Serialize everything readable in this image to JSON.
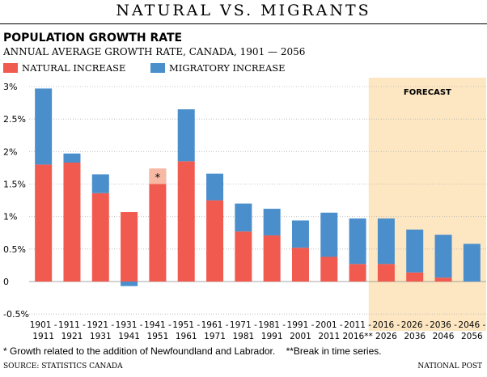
{
  "header": {
    "title": "NATURAL VS. MIGRANTS",
    "subtitle": "POPULATION GROWTH RATE",
    "description": "ANNUAL AVERAGE GROWTH RATE, CANADA, 1901 — 2056"
  },
  "legend": {
    "natural_label": "NATURAL INCREASE",
    "migratory_label": "MIGRATORY INCREASE"
  },
  "colors": {
    "natural": "#f15a4f",
    "migratory": "#4a8fcc",
    "newfoundland": "#f7b9a4",
    "forecast_bg": "#fde7c2"
  },
  "footer": {
    "footnote": "* Growth related to the addition of Newfoundland and Labrador.    **Break in time series.",
    "source": "SOURCE: STATISTICS CANADA",
    "credit": "NATIONAL POST"
  },
  "chart_data": {
    "type": "bar",
    "stacked": true,
    "ylim": [
      -0.5,
      3.0
    ],
    "yticks": [
      {
        "value": 3.0,
        "label": "3%"
      },
      {
        "value": 2.5,
        "label": "2.5%"
      },
      {
        "value": 2.0,
        "label": "2%"
      },
      {
        "value": 1.5,
        "label": "1.5%"
      },
      {
        "value": 1.0,
        "label": "1%"
      },
      {
        "value": 0.5,
        "label": "0.5%"
      },
      {
        "value": 0.0,
        "label": "0"
      },
      {
        "value": -0.5,
        "label": "-0.5%"
      }
    ],
    "grid": true,
    "forecast_label": "FORECAST",
    "forecast_start_index": 12,
    "categories": [
      [
        "1901 -",
        "1911"
      ],
      [
        "1911 -",
        "1921"
      ],
      [
        "1921 -",
        "1931"
      ],
      [
        "1931 -",
        "1941"
      ],
      [
        "1941 -",
        "1951"
      ],
      [
        "1951 -",
        "1961"
      ],
      [
        "1961 -",
        "1971"
      ],
      [
        "1971 -",
        "1981"
      ],
      [
        "1981 -",
        "1991"
      ],
      [
        "1991 -",
        "2001"
      ],
      [
        "2001 -",
        "2011"
      ],
      [
        "2011 -",
        "2016**"
      ],
      [
        "2016 -",
        "2026"
      ],
      [
        "2026 -",
        "2036"
      ],
      [
        "2036 -",
        "2046"
      ],
      [
        "2046 -",
        "2056"
      ]
    ],
    "series": [
      {
        "name": "NATURAL INCREASE",
        "values": [
          1.8,
          1.83,
          1.36,
          1.07,
          1.5,
          1.85,
          1.25,
          0.77,
          0.71,
          0.52,
          0.38,
          0.27,
          0.27,
          0.14,
          0.06,
          0.0
        ]
      },
      {
        "name": "MIGRATORY INCREASE",
        "values": [
          1.17,
          0.14,
          0.29,
          -0.07,
          0.19,
          0.8,
          0.41,
          0.43,
          0.41,
          0.42,
          0.68,
          0.7,
          0.7,
          0.66,
          0.66,
          0.58
        ]
      }
    ],
    "newfoundland_annotation": {
      "index": 4,
      "value": 0.24,
      "label": "*"
    }
  }
}
